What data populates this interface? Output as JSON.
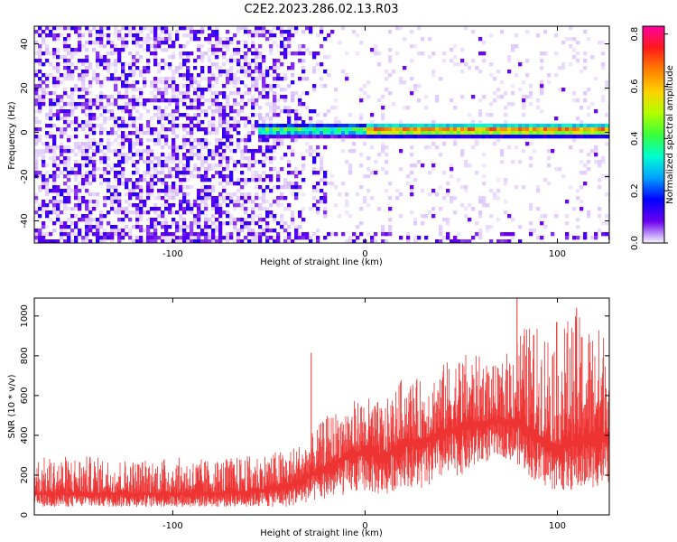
{
  "title": "C2E2.2023.286.02.13.R03",
  "chart_data": [
    {
      "type": "heatmap",
      "xlabel": "Height of straight line (km)",
      "ylabel": "Frequency (Hz)",
      "xlim": [
        -172,
        127
      ],
      "ylim": [
        -50,
        48
      ],
      "xticks": [
        -100,
        0,
        100
      ],
      "yticks": [
        -40,
        -20,
        0,
        20,
        40
      ],
      "colorbar": {
        "label": "Normalized spectral amplitude",
        "range": [
          0.0,
          0.83
        ],
        "ticks": [
          0.0,
          0.2,
          0.4,
          0.6,
          0.8
        ],
        "colormap": [
          "#f8f8ff",
          "#6a00ee",
          "#0000ff",
          "#00a0ff",
          "#00ffd0",
          "#3aff3a",
          "#b4ff00",
          "#ffd000",
          "#ff7f00",
          "#ff1a1a",
          "#ff00a0"
        ]
      },
      "features": {
        "dominant_band_hz": 1,
        "band_start_km": -55,
        "band_end_km": 127,
        "band_peak_amplitude": 0.83
      }
    },
    {
      "type": "area",
      "xlabel": "Height of straight line (km)",
      "ylabel": "SNR (10 * v/v)",
      "xlim": [
        -172,
        127
      ],
      "ylim": [
        0,
        1090
      ],
      "xticks": [
        -100,
        0,
        100
      ],
      "yticks": [
        0,
        200,
        400,
        600,
        800,
        1000
      ],
      "color": "#ee3333",
      "envelope": {
        "x": [
          -172,
          -150,
          -120,
          -100,
          -80,
          -60,
          -40,
          -30,
          -20,
          -10,
          0,
          10,
          20,
          30,
          40,
          50,
          60,
          70,
          80,
          90,
          100,
          110,
          120,
          127
        ],
        "low": [
          40,
          40,
          40,
          40,
          40,
          40,
          40,
          60,
          80,
          100,
          120,
          90,
          150,
          120,
          180,
          200,
          250,
          300,
          250,
          150,
          120,
          120,
          140,
          150
        ],
        "high": [
          290,
          300,
          280,
          290,
          280,
          300,
          330,
          380,
          500,
          560,
          600,
          560,
          700,
          680,
          760,
          820,
          800,
          740,
          960,
          950,
          980,
          1010,
          960,
          940
        ],
        "base": [
          110,
          110,
          110,
          110,
          110,
          120,
          150,
          200,
          250,
          300,
          330,
          300,
          380,
          380,
          420,
          450,
          470,
          480,
          470,
          400,
          350,
          380,
          400,
          420
        ]
      },
      "spikes": [
        {
          "x": -28,
          "y": 815
        },
        {
          "x": 79,
          "y": 1090
        },
        {
          "x": 110,
          "y": 1040
        }
      ]
    }
  ]
}
